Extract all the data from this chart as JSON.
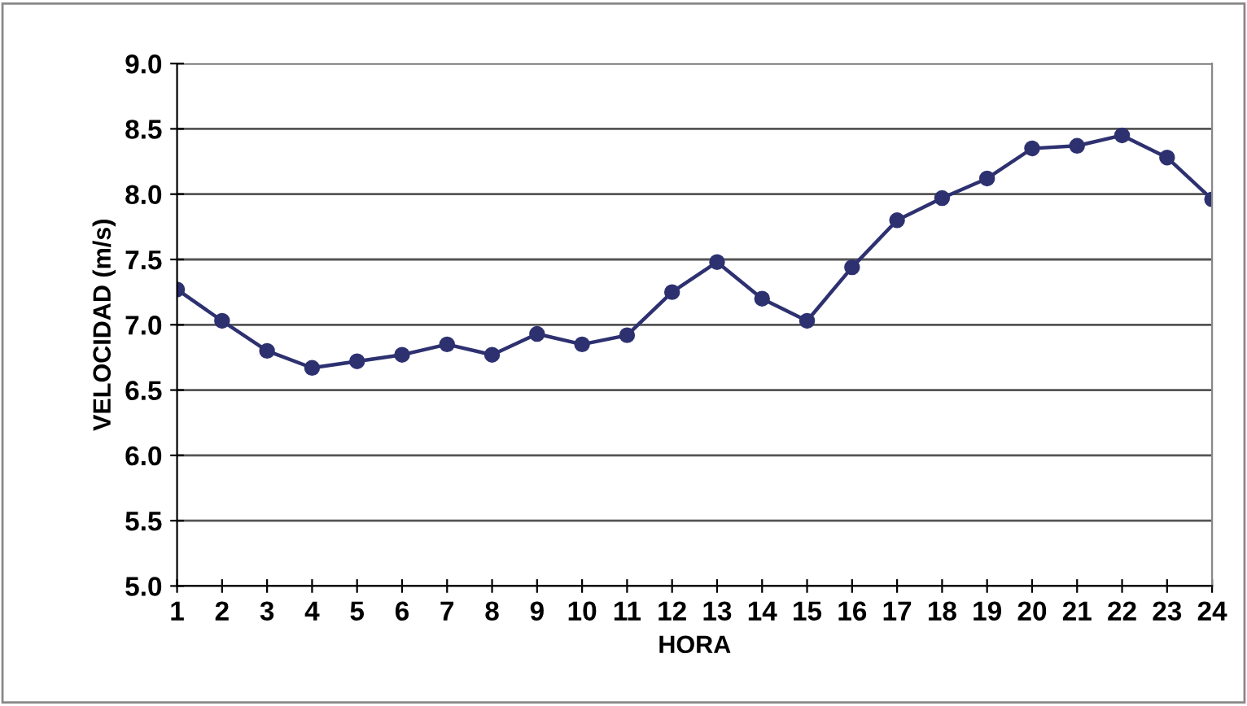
{
  "chart_data": {
    "type": "line",
    "xlabel": "HORA",
    "ylabel": "VELOCIDAD (m/s)",
    "categories": [
      "1",
      "2",
      "3",
      "4",
      "5",
      "6",
      "7",
      "8",
      "9",
      "10",
      "11",
      "12",
      "13",
      "14",
      "15",
      "16",
      "17",
      "18",
      "19",
      "20",
      "21",
      "22",
      "23",
      "24"
    ],
    "series": [
      {
        "color": "#2e3170",
        "values": [
          7.27,
          7.03,
          6.8,
          6.67,
          6.72,
          6.77,
          6.85,
          6.77,
          6.93,
          6.85,
          6.92,
          7.25,
          7.48,
          7.2,
          7.03,
          7.44,
          7.8,
          7.97,
          8.12,
          8.35,
          8.37,
          8.45,
          8.28,
          7.96
        ]
      }
    ],
    "ylim": [
      5.0,
      9.0
    ],
    "yticks": [
      {
        "value": 5.0,
        "label": "5.0"
      },
      {
        "value": 5.5,
        "label": "5.5"
      },
      {
        "value": 6.0,
        "label": "6.0"
      },
      {
        "value": 6.5,
        "label": "6.5"
      },
      {
        "value": 7.0,
        "label": "7.0"
      },
      {
        "value": 7.5,
        "label": "7.5"
      },
      {
        "value": 8.0,
        "label": "8.0"
      },
      {
        "value": 8.5,
        "label": "8.5"
      },
      {
        "value": 9.0,
        "label": "9.0"
      }
    ],
    "grid": "y",
    "marker": "circle",
    "line_style": "solid",
    "legend": false
  }
}
